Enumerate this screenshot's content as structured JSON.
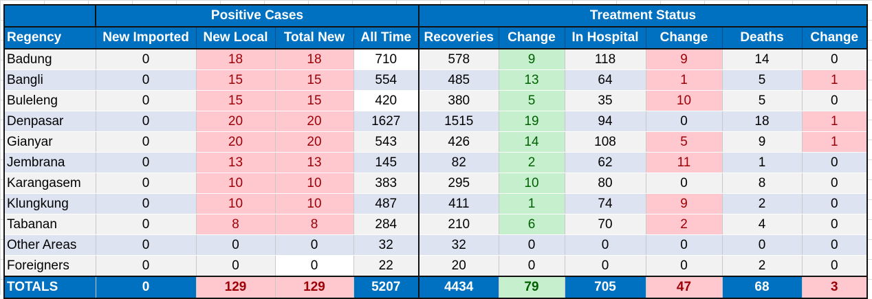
{
  "groups": {
    "positive": "Positive Cases",
    "treatment": "Treatment Status"
  },
  "headers": [
    "Regency",
    "New Imported",
    "New Local",
    "Total New",
    "All Time",
    "Recoveries",
    "Change",
    "In Hospital",
    "Change",
    "Deaths",
    "Change"
  ],
  "rows": [
    {
      "name": "Badung",
      "vals": [
        "0",
        "18",
        "18",
        "710",
        "578",
        "9",
        "118",
        "9",
        "14",
        "0"
      ]
    },
    {
      "name": "Bangli",
      "vals": [
        "0",
        "15",
        "15",
        "554",
        "485",
        "13",
        "64",
        "1",
        "5",
        "1"
      ]
    },
    {
      "name": "Buleleng",
      "vals": [
        "0",
        "15",
        "15",
        "420",
        "380",
        "5",
        "35",
        "10",
        "5",
        "0"
      ]
    },
    {
      "name": "Denpasar",
      "vals": [
        "0",
        "20",
        "20",
        "1627",
        "1515",
        "19",
        "94",
        "0",
        "18",
        "1"
      ]
    },
    {
      "name": "Gianyar",
      "vals": [
        "0",
        "20",
        "20",
        "543",
        "426",
        "14",
        "108",
        "5",
        "9",
        "1"
      ]
    },
    {
      "name": "Jembrana",
      "vals": [
        "0",
        "13",
        "13",
        "145",
        "82",
        "2",
        "62",
        "11",
        "1",
        "0"
      ]
    },
    {
      "name": "Karangasem",
      "vals": [
        "0",
        "10",
        "10",
        "383",
        "295",
        "10",
        "80",
        "0",
        "8",
        "0"
      ]
    },
    {
      "name": "Klungkung",
      "vals": [
        "0",
        "10",
        "10",
        "487",
        "411",
        "1",
        "74",
        "9",
        "2",
        "0"
      ]
    },
    {
      "name": "Tabanan",
      "vals": [
        "0",
        "8",
        "8",
        "284",
        "210",
        "6",
        "70",
        "2",
        "4",
        "0"
      ]
    },
    {
      "name": "Other Areas",
      "vals": [
        "0",
        "0",
        "0",
        "32",
        "32",
        "0",
        "0",
        "0",
        "0",
        "0"
      ]
    },
    {
      "name": "Foreigners",
      "vals": [
        "0",
        "0",
        "0",
        "22",
        "20",
        "0",
        "0",
        "0",
        "2",
        "0"
      ]
    }
  ],
  "totals": {
    "name": "TOTALS",
    "vals": [
      "0",
      "129",
      "129",
      "5207",
      "4434",
      "79",
      "705",
      "47",
      "68",
      "3"
    ]
  },
  "colors": {
    "header_blue": "#0070c0",
    "red_fill": "#ffc7ce",
    "red_text": "#9c0006",
    "green_fill": "#c6efce",
    "green_text": "#006100"
  }
}
